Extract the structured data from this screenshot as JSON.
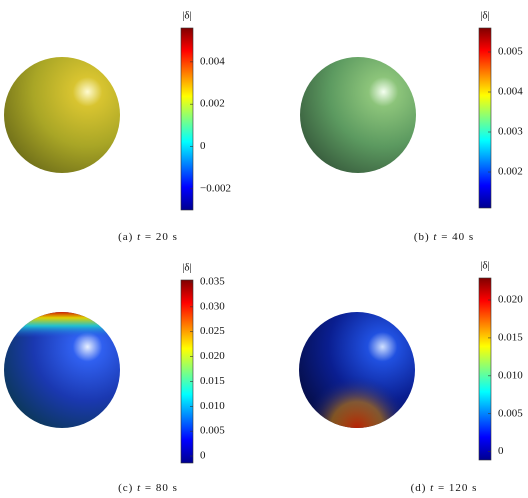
{
  "colormap": "jet",
  "panels": [
    {
      "label": "(a)",
      "variable": "t",
      "value": "= 20 s",
      "colorbar": {
        "label": "|δ|",
        "clim": [
          -0.003,
          0.0056
        ],
        "ticks": [
          {
            "value": -0.002,
            "label": "−0.002"
          },
          0,
          0.002,
          0.004
        ]
      }
    },
    {
      "label": "(b)",
      "variable": "t",
      "value": "= 40 s",
      "colorbar": {
        "label": "|δ|",
        "clim": [
          0.0011,
          0.0056
        ],
        "ticks": [
          0.002,
          0.003,
          0.004,
          0.005
        ]
      }
    },
    {
      "label": "(c)",
      "variable": "t",
      "value": "= 80 s",
      "colorbar": {
        "label": "|δ|",
        "clim": [
          -0.0014,
          0.0354
        ],
        "ticks": [
          0,
          0.005,
          {
            "value": 0.01,
            "label": "0.010"
          },
          0.015,
          {
            "value": 0.02,
            "label": "0.020"
          },
          0.025,
          {
            "value": 0.03,
            "label": "0.030"
          },
          0.035
        ]
      }
    },
    {
      "label": "(d)",
      "variable": "t",
      "value": "= 120 s",
      "colorbar": {
        "label": "|δ|",
        "clim": [
          -0.0011,
          0.0229
        ],
        "ticks": [
          0,
          0.005,
          {
            "value": 0.01,
            "label": "0.010"
          },
          0.015,
          {
            "value": 0.02,
            "label": "0.020"
          }
        ]
      }
    }
  ]
}
